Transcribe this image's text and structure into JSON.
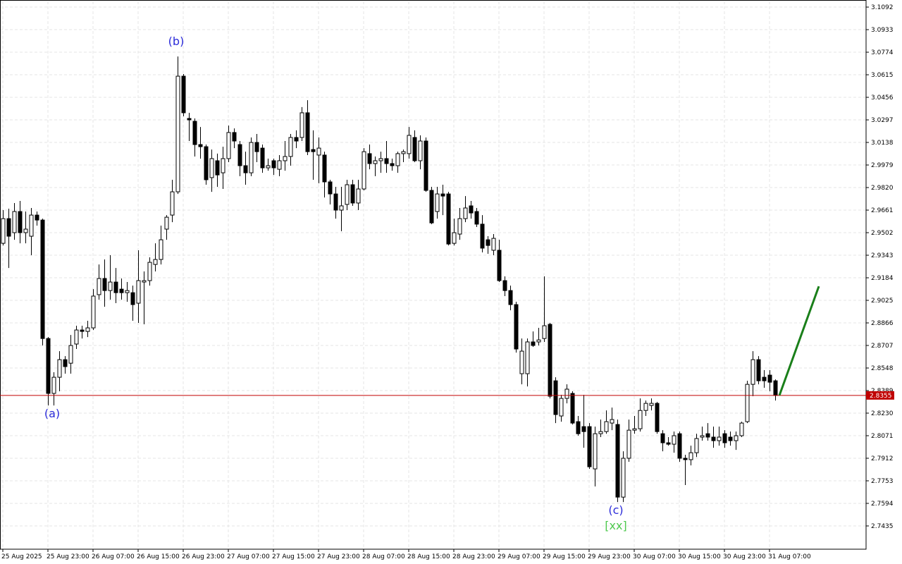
{
  "chart_data": {
    "type": "candlestick",
    "up_color": "#ffffff",
    "down_color": "#000000",
    "grid": true,
    "ylim": [
      2.7271,
      3.1132
    ],
    "yticks": [
      3.1092,
      3.0933,
      3.0774,
      3.0615,
      3.0456,
      3.0297,
      3.0138,
      2.9979,
      {
        "value": 2.982,
        "label": "2.9820"
      },
      2.9661,
      2.9502,
      2.9343,
      2.9184,
      2.9025,
      2.8866,
      2.8707,
      2.8548,
      2.8389,
      {
        "value": 2.823,
        "label": "2.8230"
      },
      2.8071,
      2.7912,
      2.7753,
      2.7594,
      2.7435
    ],
    "categories": [
      "25 Aug 2025",
      null,
      null,
      null,
      null,
      null,
      null,
      null,
      "25 Aug 23:00",
      null,
      null,
      null,
      null,
      null,
      null,
      null,
      "26 Aug 07:00",
      null,
      null,
      null,
      null,
      null,
      null,
      null,
      "26 Aug 15:00",
      null,
      null,
      null,
      null,
      null,
      null,
      null,
      "26 Aug 23:00",
      null,
      null,
      null,
      null,
      null,
      null,
      null,
      "27 Aug 07:00",
      null,
      null,
      null,
      null,
      null,
      null,
      null,
      "27 Aug 15:00",
      null,
      null,
      null,
      null,
      null,
      null,
      null,
      "27 Aug 23:00",
      null,
      null,
      null,
      null,
      null,
      null,
      null,
      "28 Aug 07:00",
      null,
      null,
      null,
      null,
      null,
      null,
      null,
      "28 Aug 15:00",
      null,
      null,
      null,
      null,
      null,
      null,
      null,
      "28 Aug 23:00",
      null,
      null,
      null,
      null,
      null,
      null,
      null,
      "29 Aug 07:00",
      null,
      null,
      null,
      null,
      null,
      null,
      null,
      "29 Aug 15:00",
      null,
      null,
      null,
      null,
      null,
      null,
      null,
      "29 Aug 23:00",
      null,
      null,
      null,
      null,
      null,
      null,
      null,
      "30 Aug 07:00",
      null,
      null,
      null,
      null,
      null,
      null,
      null,
      "30 Aug 15:00",
      null,
      null,
      null,
      null,
      null,
      null,
      null,
      "30 Aug 23:00",
      null,
      null,
      null,
      null,
      null,
      null,
      null,
      "31 Aug 07:00",
      null
    ],
    "open": [
      2.9427,
      2.9601,
      2.9502,
      2.9651,
      2.9502,
      2.9477,
      2.9626,
      2.9591,
      2.8756,
      2.8369,
      2.8483,
      2.8607,
      2.8582,
      2.8717,
      2.8816,
      2.8806,
      2.8831,
      2.9065,
      2.9179,
      2.9094,
      2.9154,
      2.9104,
      2.9079,
      2.9079,
      2.9005,
      2.9154,
      2.9164,
      2.9278,
      2.9313,
      2.9527,
      2.9626,
      2.979,
      3.0605,
      3.0307,
      3.0287,
      3.0123,
      3.0108,
      2.989,
      3.0009,
      2.9924,
      3.0024,
      3.0208,
      3.0123,
      2.9974,
      2.9924,
      3.0138,
      3.0098,
      2.9959,
      3.0009,
      2.9949,
      3.0009,
      3.0039,
      3.0173,
      3.0173,
      3.0347,
      3.0088,
      3.0049,
      3.0049,
      2.986,
      2.9775,
      2.9661,
      2.9701,
      2.984,
      2.9711,
      2.981,
      3.0059,
      2.9989,
      3.0009,
      3.0024,
      2.9989,
      2.9974,
      3.0059,
      3.0059,
      3.0173,
      3.0009,
      3.0148,
      2.98,
      2.9651,
      2.9775,
      2.9775,
      2.9427,
      2.9492,
      2.9601,
      2.9691,
      2.9651,
      2.9562,
      2.9452,
      2.9378,
      2.9378,
      2.9164,
      2.9094,
      2.8995,
      2.8508,
      2.8508,
      2.8732,
      2.8732,
      2.8756,
      2.8856,
      2.8458,
      2.821,
      2.8334,
      2.8369,
      2.817,
      2.8135,
      2.8135,
      2.7837,
      2.8085,
      2.81,
      2.816,
      2.815,
      2.7638,
      2.7912,
      2.811,
      2.812,
      2.8249,
      2.8284,
      2.8299,
      2.8085,
      2.8021,
      2.8011,
      2.8085,
      2.7912,
      2.7902,
      2.7951,
      2.8061,
      2.8085,
      2.8061,
      2.8036,
      2.8085,
      2.8061,
      2.8036,
      2.8071,
      2.817,
      2.8433,
      2.8607,
      2.8483,
      2.8498,
      2.8458
    ],
    "high": [
      2.9661,
      2.9671,
      2.9711,
      2.9726,
      2.9651,
      2.9676,
      2.9651,
      2.9601,
      2.8766,
      2.8518,
      2.8667,
      2.8632,
      2.8781,
      2.8846,
      2.8846,
      2.8881,
      2.9104,
      2.9278,
      2.9313,
      2.9343,
      2.9253,
      2.9179,
      2.9154,
      2.9129,
      2.9378,
      2.9229,
      2.9328,
      2.9427,
      2.9552,
      2.9626,
      2.9875,
      3.0744,
      3.062,
      3.0347,
      3.0307,
      3.0247,
      3.0123,
      3.0088,
      3.0059,
      3.0108,
      3.0257,
      3.0237,
      3.0148,
      3.0073,
      3.0173,
      3.0198,
      3.0123,
      3.0024,
      3.0024,
      3.0049,
      3.0148,
      3.0198,
      3.0223,
      3.0387,
      3.0436,
      3.0223,
      3.0173,
      3.0073,
      2.9875,
      2.9825,
      2.9825,
      2.9875,
      2.9875,
      2.9875,
      3.0098,
      3.0123,
      3.0039,
      3.0073,
      3.0148,
      3.0024,
      3.0073,
      3.0088,
      3.0247,
      3.0223,
      3.0188,
      3.0173,
      2.9825,
      2.9825,
      2.984,
      2.979,
      2.9601,
      2.9676,
      2.976,
      2.9726,
      2.9676,
      2.9626,
      2.9477,
      2.9492,
      2.9452,
      2.9194,
      2.9129,
      2.9015,
      2.8756,
      2.8756,
      2.8806,
      2.8831,
      2.9194,
      2.8866,
      2.8483,
      2.8359,
      2.8433,
      2.8384,
      2.821,
      2.8359,
      2.816,
      2.8135,
      2.8185,
      2.8249,
      2.8269,
      2.8185,
      2.7961,
      2.8185,
      2.821,
      2.8334,
      2.8319,
      2.8334,
      2.8309,
      2.811,
      2.8061,
      2.81,
      2.81,
      2.7936,
      2.8001,
      2.8085,
      2.8135,
      2.816,
      2.8135,
      2.8135,
      2.811,
      2.81,
      2.81,
      2.817,
      2.8458,
      2.8667,
      2.8632,
      2.8533,
      2.8533,
      2.8468
    ],
    "low": [
      2.9412,
      2.9253,
      2.9452,
      2.9427,
      2.9427,
      2.9343,
      2.9552,
      2.8707,
      2.8284,
      2.8284,
      2.8384,
      2.8508,
      2.8508,
      2.8682,
      2.8756,
      2.8766,
      2.8816,
      2.903,
      2.898,
      2.903,
      2.9005,
      2.903,
      2.9015,
      2.8881,
      2.8866,
      2.8856,
      2.9129,
      2.9229,
      2.9278,
      2.9452,
      2.9576,
      2.9775,
      3.0322,
      3.0148,
      3.0039,
      3.0024,
      2.984,
      2.979,
      2.9825,
      2.981,
      2.9999,
      3.0098,
      2.99,
      2.984,
      2.99,
      2.9999,
      2.9924,
      2.9939,
      2.9909,
      2.99,
      2.9939,
      2.9974,
      3.0098,
      3.0148,
      3.0049,
      2.9875,
      2.985,
      2.975,
      2.9701,
      2.9601,
      2.9512,
      2.9661,
      2.9691,
      2.9661,
      2.98,
      2.9949,
      2.99,
      2.9924,
      2.9924,
      2.9939,
      2.9924,
      2.9999,
      3.0024,
      2.9999,
      2.9949,
      2.979,
      2.9562,
      2.9601,
      2.9626,
      2.9412,
      2.9412,
      2.9452,
      2.9576,
      2.9601,
      2.9542,
      2.9363,
      2.9353,
      2.9343,
      2.9154,
      2.9055,
      2.8955,
      2.8657,
      2.8433,
      2.8418,
      2.8697,
      2.8707,
      2.8732,
      2.8334,
      2.816,
      2.817,
      2.8299,
      2.815,
      2.8071,
      2.7986,
      2.7837,
      2.7713,
      2.8061,
      2.8085,
      2.811,
      2.7603,
      2.7603,
      2.7887,
      2.8085,
      2.81,
      2.821,
      2.8249,
      2.8085,
      2.7961,
      2.8001,
      2.7951,
      2.7887,
      2.7723,
      2.7862,
      2.7921,
      2.8036,
      2.8036,
      2.7986,
      2.8001,
      2.7986,
      2.8001,
      2.7971,
      2.8061,
      2.816,
      2.8349,
      2.8433,
      2.8409,
      2.8384,
      2.8319
    ],
    "close": [
      2.9601,
      2.9477,
      2.9651,
      2.9502,
      2.9527,
      2.9626,
      2.9591,
      2.8756,
      2.8369,
      2.8483,
      2.8607,
      2.8558,
      2.8707,
      2.8816,
      2.8806,
      2.8831,
      2.9055,
      2.9179,
      2.9094,
      2.9154,
      2.9079,
      2.9079,
      2.9094,
      2.8995,
      2.9164,
      2.9164,
      2.9293,
      2.9313,
      2.9452,
      2.9611,
      2.979,
      3.0605,
      3.0347,
      3.0297,
      3.0123,
      3.0108,
      2.9875,
      3.0024,
      2.9909,
      3.0024,
      3.0208,
      3.0148,
      2.9974,
      2.9924,
      3.0138,
      3.0073,
      2.9959,
      2.9974,
      2.9959,
      3.0009,
      3.0039,
      3.0173,
      3.0148,
      3.0347,
      3.0073,
      3.0073,
      3.0098,
      2.986,
      2.9775,
      2.9661,
      2.9691,
      2.984,
      2.9711,
      2.981,
      3.0073,
      2.9989,
      3.0009,
      3.0024,
      2.9989,
      2.9974,
      3.0059,
      3.0073,
      3.0188,
      3.0009,
      3.0148,
      2.98,
      2.9571,
      2.9775,
      2.976,
      2.9422,
      2.9502,
      2.9601,
      2.9676,
      2.9641,
      2.9562,
      2.9393,
      2.9412,
      2.9462,
      2.9164,
      2.9094,
      2.8995,
      2.8682,
      2.8667,
      2.8732,
      2.8707,
      2.8746,
      2.8846,
      2.8349,
      2.822,
      2.8334,
      2.8399,
      2.816,
      2.8085,
      2.81,
      2.7852,
      2.8085,
      2.81,
      2.817,
      2.8185,
      2.7638,
      2.7912,
      2.811,
      2.812,
      2.8249,
      2.8299,
      2.8299,
      2.81,
      2.8021,
      2.8011,
      2.8071,
      2.7912,
      2.7902,
      2.7951,
      2.8051,
      2.8071,
      2.8061,
      2.8036,
      2.8061,
      2.8021,
      2.8036,
      2.8071,
      2.816,
      2.8433,
      2.8607,
      2.8458,
      2.8458,
      2.8448,
      2.8355
    ],
    "current_price": 2.8355,
    "current_price_color": "#c00000",
    "forecast": {
      "color": "#1a7f1a",
      "values": [
        2.8355,
        2.9124
      ]
    },
    "annotations": [
      {
        "text": "(a)",
        "color": "#2b2bd9"
      },
      {
        "text": "(b)",
        "color": "#2b2bd9"
      },
      {
        "text": "(c)",
        "color": "#2b2bd9"
      },
      {
        "text": "[xx]",
        "color": "#4fc94f"
      }
    ]
  }
}
